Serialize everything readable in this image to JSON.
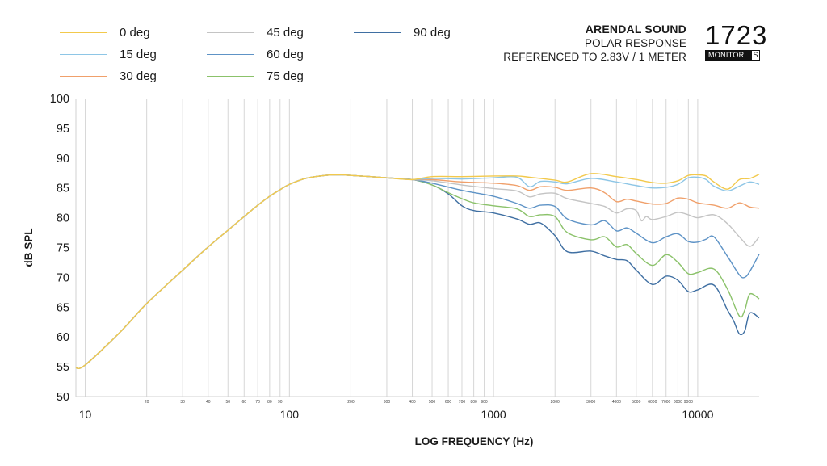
{
  "header": {
    "brand": "ARENDAL SOUND",
    "line1": "POLAR RESPONSE",
    "line2": "REFERENCED TO 2.83V / 1 METER",
    "model_number": "1723",
    "model_badge": "MONITOR",
    "model_badge_letter": "S"
  },
  "chart_data": {
    "type": "line",
    "xlabel": "LOG FREQUENCY (Hz)",
    "ylabel": "dB SPL",
    "xscale": "log",
    "xlim": [
      9,
      20000
    ],
    "ylim": [
      50,
      100
    ],
    "grid": "vertical",
    "legend_position": "top-left",
    "y_ticks": [
      50,
      55,
      60,
      65,
      70,
      75,
      80,
      85,
      90,
      95,
      100
    ],
    "x_major_ticks": [
      10,
      100,
      1000,
      10000
    ],
    "x_major_labels": [
      "10",
      "100",
      "1000",
      "10000"
    ],
    "x_minor_ticks": [
      20,
      30,
      40,
      50,
      60,
      70,
      80,
      90,
      200,
      300,
      400,
      500,
      600,
      700,
      800,
      900,
      2000,
      3000,
      4000,
      5000,
      6000,
      7000,
      8000,
      9000
    ],
    "x_minor_labels": [
      "20",
      "30",
      "40",
      "50",
      "60",
      "70",
      "80",
      "90",
      "200",
      "300",
      "400",
      "500",
      "600",
      "700",
      "800",
      "900",
      "2000",
      "3000",
      "4000",
      "5000",
      "6000",
      "7000",
      "8000",
      "9000"
    ],
    "base_response": {
      "x": [
        9,
        10,
        15,
        20,
        30,
        40,
        50,
        60,
        70,
        80,
        90,
        100,
        120,
        150,
        180,
        200,
        250,
        300,
        400,
        500
      ],
      "y": [
        54.8,
        55.3,
        61.0,
        65.6,
        71.2,
        75.1,
        77.9,
        80.2,
        82.1,
        83.6,
        84.7,
        85.6,
        86.6,
        87.1,
        87.2,
        87.1,
        86.9,
        86.7,
        86.4,
        86.1
      ]
    },
    "series": [
      {
        "name": "0 deg",
        "color": "#f2c94c",
        "x": [
          500,
          700,
          1000,
          1300,
          1500,
          2000,
          2300,
          3000,
          4000,
          5000,
          6000,
          7000,
          8000,
          9000,
          10000,
          11000,
          12000,
          14000,
          16000,
          18000,
          20000
        ],
        "y": [
          86.9,
          86.9,
          87.0,
          87.0,
          86.8,
          86.3,
          86.0,
          87.4,
          86.9,
          86.4,
          85.9,
          85.8,
          86.2,
          87.1,
          87.2,
          87.0,
          86.0,
          84.8,
          86.4,
          86.6,
          87.3
        ]
      },
      {
        "name": "15 deg",
        "color": "#8ec6e6",
        "x": [
          500,
          700,
          1000,
          1300,
          1500,
          1700,
          2000,
          2300,
          3000,
          4000,
          5000,
          6000,
          7000,
          8000,
          9000,
          10000,
          11000,
          12000,
          14000,
          16000,
          18000,
          20000
        ],
        "y": [
          86.6,
          86.5,
          86.7,
          86.8,
          85.2,
          86.1,
          86.0,
          85.7,
          86.6,
          86.0,
          85.4,
          85.0,
          85.1,
          85.6,
          86.7,
          86.8,
          86.4,
          85.3,
          84.5,
          85.3,
          86.0,
          85.6
        ]
      },
      {
        "name": "30 deg",
        "color": "#f0a06b",
        "x": [
          500,
          700,
          1000,
          1300,
          1500,
          1700,
          2000,
          2300,
          3000,
          3500,
          4000,
          4500,
          5000,
          6000,
          7000,
          8000,
          9000,
          10000,
          12000,
          14000,
          16000,
          18000,
          20000
        ],
        "y": [
          86.4,
          86.0,
          85.8,
          85.4,
          84.6,
          85.2,
          85.1,
          84.6,
          85.0,
          84.2,
          82.7,
          83.1,
          82.8,
          82.3,
          82.4,
          83.3,
          83.1,
          82.5,
          82.1,
          81.6,
          82.5,
          81.8,
          81.6
        ]
      },
      {
        "name": "45 deg",
        "color": "#c4c4c4",
        "x": [
          500,
          700,
          1000,
          1300,
          1500,
          1700,
          2000,
          2300,
          3000,
          3500,
          4000,
          4500,
          5000,
          5300,
          5600,
          6000,
          7000,
          8000,
          9000,
          10000,
          12000,
          14000,
          16000,
          18000,
          20000
        ],
        "y": [
          86.2,
          85.5,
          84.9,
          84.5,
          83.5,
          84.0,
          84.1,
          83.2,
          82.4,
          81.9,
          80.8,
          81.5,
          81.2,
          79.5,
          80.2,
          79.7,
          80.2,
          80.9,
          80.5,
          80.0,
          80.5,
          79.0,
          76.8,
          75.2,
          76.8
        ]
      },
      {
        "name": "60 deg",
        "color": "#5e93c6",
        "x": [
          500,
          700,
          1000,
          1300,
          1500,
          1700,
          2000,
          2300,
          3000,
          3500,
          4000,
          4500,
          5000,
          6000,
          7000,
          8000,
          9000,
          10000,
          11000,
          12000,
          14000,
          16000,
          17000,
          18000,
          20000
        ],
        "y": [
          85.8,
          84.6,
          83.6,
          82.4,
          81.6,
          82.1,
          81.9,
          79.8,
          78.8,
          79.5,
          77.8,
          78.3,
          77.4,
          75.8,
          76.8,
          77.3,
          76.0,
          75.9,
          76.4,
          76.8,
          73.5,
          70.4,
          70.0,
          71.0,
          73.9
        ]
      },
      {
        "name": "75 deg",
        "color": "#8bc26a",
        "x": [
          500,
          600,
          700,
          800,
          1000,
          1300,
          1500,
          1700,
          2000,
          2300,
          3000,
          3500,
          4000,
          4500,
          5000,
          6000,
          7000,
          8000,
          9000,
          10000,
          12000,
          14000,
          16000,
          17000,
          18000,
          20000
        ],
        "y": [
          85.5,
          84.2,
          83.2,
          82.5,
          82.0,
          81.5,
          80.2,
          80.5,
          80.2,
          77.5,
          76.3,
          76.8,
          75.1,
          75.5,
          74.0,
          72.0,
          73.8,
          72.5,
          70.6,
          70.8,
          71.4,
          68.0,
          63.5,
          64.5,
          67.2,
          66.4
        ]
      },
      {
        "name": "90 deg",
        "color": "#3f6fa2",
        "x": [
          500,
          600,
          700,
          800,
          1000,
          1300,
          1500,
          1700,
          2000,
          2300,
          3000,
          3500,
          4000,
          4500,
          5000,
          6000,
          7000,
          8000,
          9000,
          10000,
          12000,
          14000,
          15000,
          16000,
          17000,
          18000,
          20000
        ],
        "y": [
          85.5,
          84.0,
          82.0,
          81.2,
          80.8,
          79.8,
          78.9,
          79.1,
          77.0,
          74.3,
          74.4,
          73.6,
          73.0,
          72.8,
          71.2,
          68.8,
          70.2,
          69.5,
          67.6,
          67.9,
          68.7,
          64.5,
          62.7,
          60.5,
          61.0,
          64.0,
          63.2
        ]
      }
    ]
  }
}
